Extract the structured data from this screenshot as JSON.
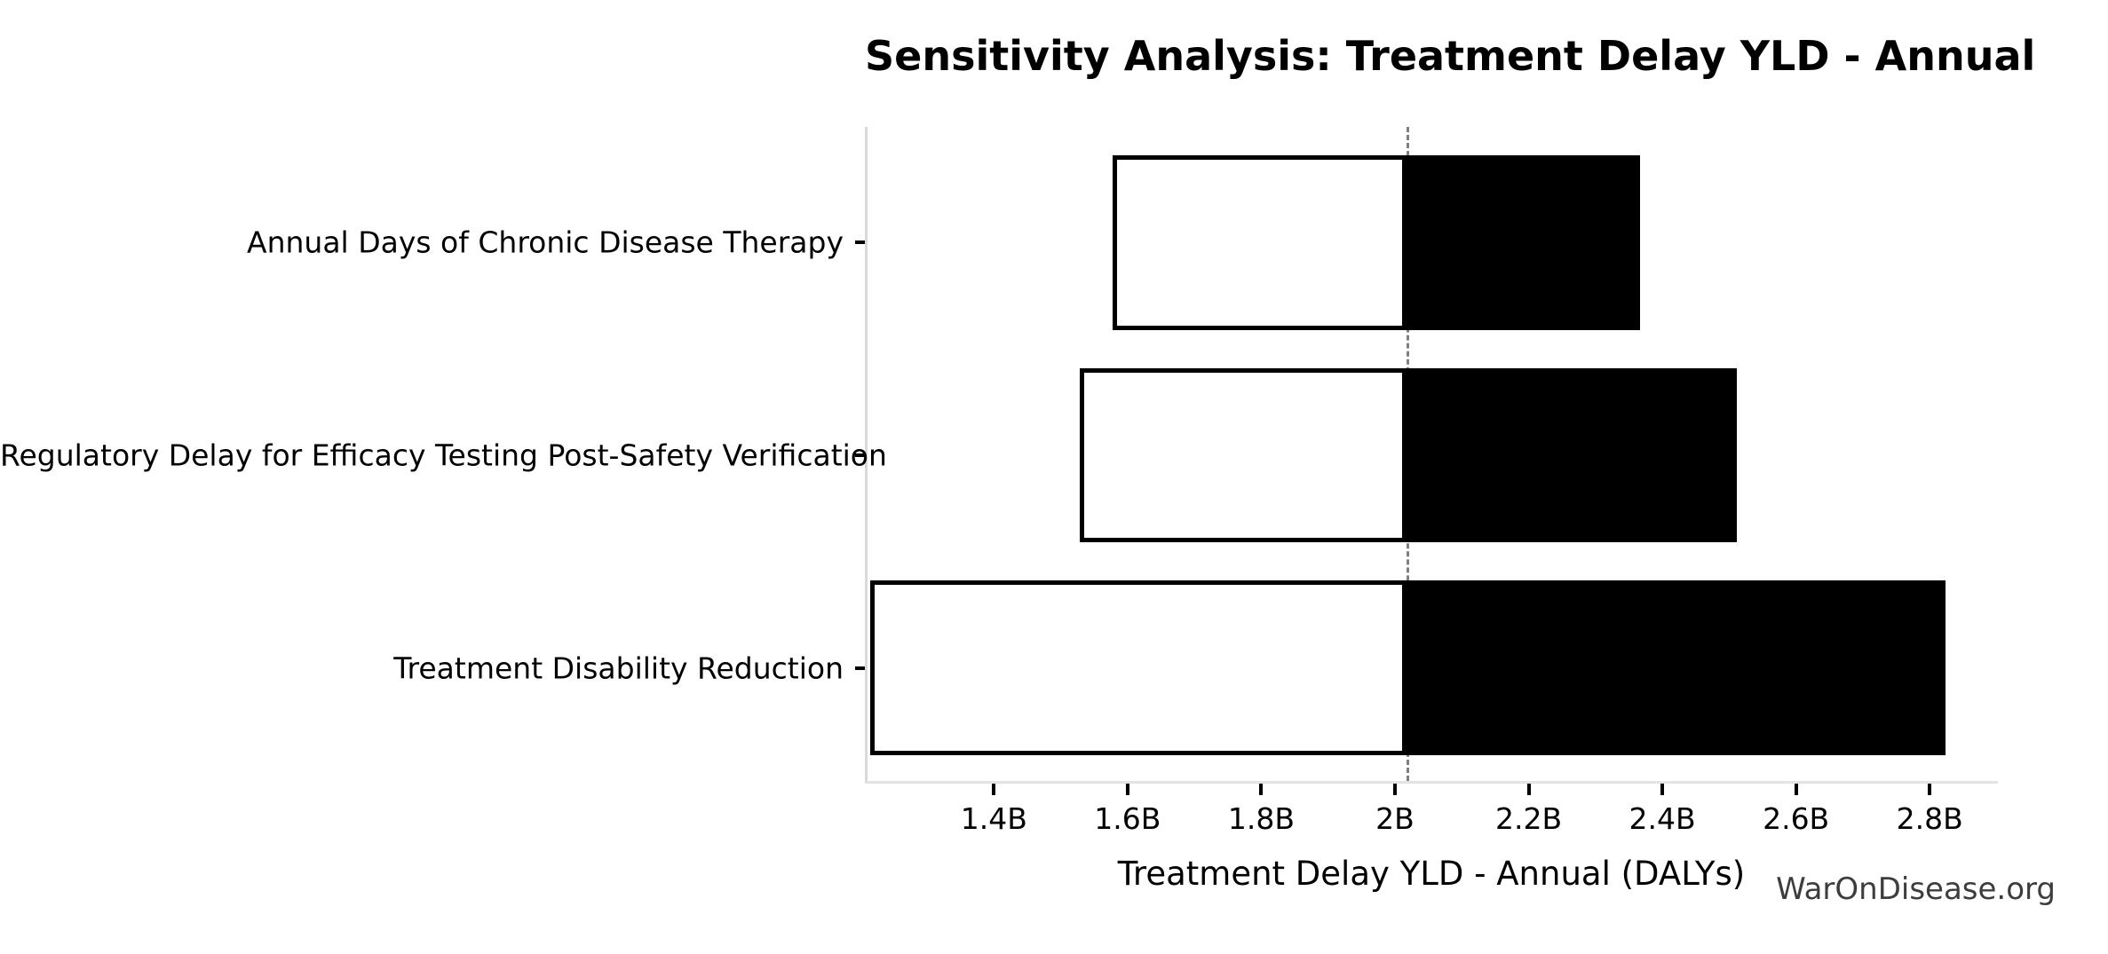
{
  "page": {
    "background": "#ffffff",
    "watermark": "WarOnDisease.org"
  },
  "chart_data": {
    "type": "bar",
    "subtype": "tornado-sensitivity",
    "orientation": "horizontal",
    "title": "Sensitivity Analysis: Treatment Delay YLD - Annual",
    "xlabel": "Treatment Delay YLD - Annual (DALYs)",
    "ylabel": "",
    "unit": "billions of DALYs",
    "categories": [
      "Annual Days of Chronic Disease Therapy",
      "Regulatory Delay for Efficacy Testing Post-Safety Verification",
      "Treatment Disability Reduction"
    ],
    "series": [
      {
        "name": "low_end",
        "values": [
          1.574,
          1.525,
          1.211
        ]
      },
      {
        "name": "high_end",
        "values": [
          2.365,
          2.51,
          2.824
        ]
      }
    ],
    "base_value": 2.015,
    "xlim": [
      1.207,
      2.902
    ],
    "x_ticks": {
      "values": [
        1.4,
        1.6,
        1.8,
        2.0,
        2.2,
        2.4,
        2.6,
        2.8
      ],
      "labels": [
        "1.4B",
        "1.6B",
        "1.8B",
        "2B",
        "2.2B",
        "2.4B",
        "2.6B",
        "2.8B"
      ]
    },
    "grid": false,
    "legend": false,
    "colors": {
      "low_fill": "#ffffff",
      "high_fill": "#000000",
      "bar_border": "#000000",
      "baseline_dash": "#7f7f7f",
      "spine": "#d9d9d9",
      "text": "#000000",
      "watermark": "#3d3d3d"
    }
  }
}
